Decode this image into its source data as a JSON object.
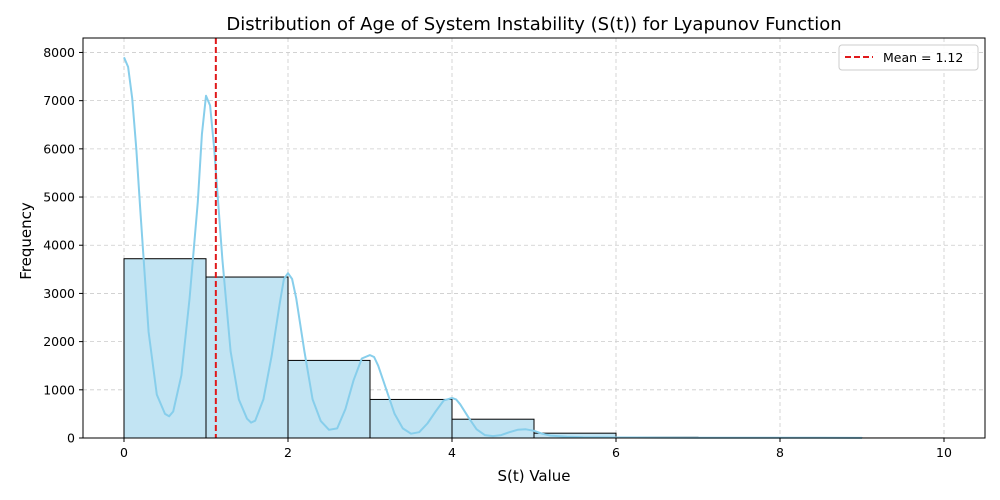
{
  "chart_data": {
    "type": "bar",
    "title": "Distribution of Age of System Instability (S(t)) for Lyapunov Function",
    "xlabel": "S(t) Value",
    "ylabel": "Frequency",
    "xlim": [
      -0.5,
      10.5
    ],
    "ylim": [
      0,
      8300
    ],
    "xticks": [
      0,
      2,
      4,
      6,
      8,
      10
    ],
    "yticks": [
      0,
      1000,
      2000,
      3000,
      4000,
      5000,
      6000,
      7000,
      8000
    ],
    "grid": true,
    "legend_position": "top-right",
    "bins": [
      {
        "start": 0,
        "end": 1,
        "value": 3720
      },
      {
        "start": 1,
        "end": 2,
        "value": 3340
      },
      {
        "start": 2,
        "end": 3,
        "value": 1610
      },
      {
        "start": 3,
        "end": 4,
        "value": 800
      },
      {
        "start": 4,
        "end": 5,
        "value": 390
      },
      {
        "start": 5,
        "end": 6,
        "value": 100
      },
      {
        "start": 6,
        "end": 7,
        "value": 15
      },
      {
        "start": 7,
        "end": 8,
        "value": 5
      },
      {
        "start": 8,
        "end": 9,
        "value": 2
      },
      {
        "start": 9,
        "end": 10,
        "value": 1
      }
    ],
    "kde": {
      "x": [
        0,
        0.05,
        0.1,
        0.15,
        0.2,
        0.3,
        0.4,
        0.5,
        0.55,
        0.6,
        0.7,
        0.8,
        0.9,
        0.95,
        1.0,
        1.05,
        1.1,
        1.2,
        1.3,
        1.4,
        1.5,
        1.55,
        1.6,
        1.7,
        1.8,
        1.9,
        1.95,
        2.0,
        2.05,
        2.1,
        2.2,
        2.3,
        2.4,
        2.5,
        2.6,
        2.7,
        2.8,
        2.9,
        3.0,
        3.05,
        3.1,
        3.2,
        3.3,
        3.4,
        3.5,
        3.6,
        3.7,
        3.8,
        3.9,
        4.0,
        4.05,
        4.1,
        4.2,
        4.3,
        4.4,
        4.5,
        4.6,
        4.7,
        4.8,
        4.9,
        5.0,
        5.1,
        5.2,
        5.4,
        5.6,
        6.0,
        6.5,
        7.0,
        7.5,
        8.0,
        8.5,
        9.0
      ],
      "y": [
        7900,
        7700,
        7050,
        6000,
        4700,
        2200,
        900,
        500,
        450,
        550,
        1300,
        2900,
        4900,
        6300,
        7100,
        6900,
        6000,
        3700,
        1800,
        800,
        400,
        320,
        360,
        800,
        1700,
        2800,
        3300,
        3420,
        3300,
        2900,
        1800,
        800,
        350,
        170,
        200,
        600,
        1200,
        1650,
        1720,
        1680,
        1500,
        1000,
        500,
        200,
        90,
        120,
        300,
        550,
        780,
        830,
        800,
        700,
        430,
        180,
        60,
        40,
        60,
        120,
        170,
        180,
        150,
        90,
        50,
        25,
        15,
        10,
        8,
        7,
        6,
        5,
        4,
        2
      ]
    },
    "mean": 1.12,
    "colors": {
      "bar_fill": "#c2e4f3",
      "bar_edge": "#000000",
      "kde_line": "#87ceeb",
      "mean_line": "#e0191b",
      "grid": "#cccccc"
    }
  },
  "legend": {
    "mean_label": "Mean = 1.12"
  }
}
